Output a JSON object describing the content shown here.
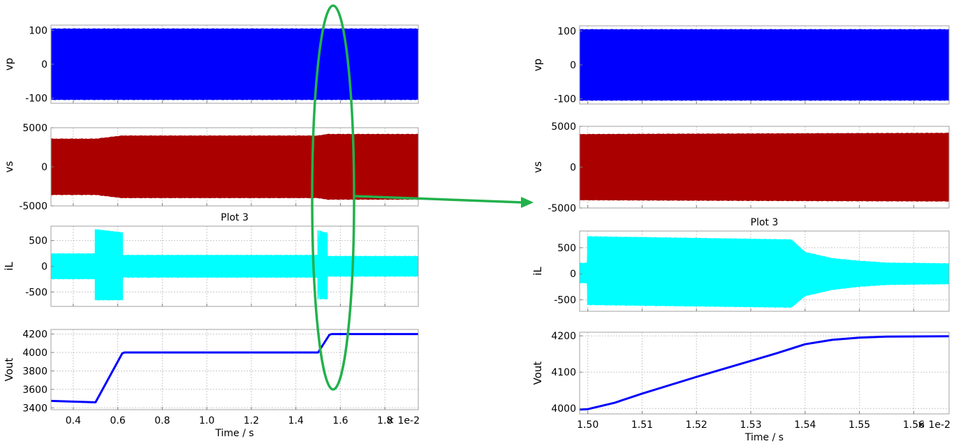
{
  "chart_data": [
    {
      "id": "left-vp",
      "type": "area",
      "ylabel": "vp",
      "xlim": [
        0.3,
        1.95
      ],
      "ylim": [
        -115,
        115
      ],
      "yticks": [
        100,
        0,
        -100
      ],
      "ytick_labels": [
        "100",
        "0",
        "-100"
      ],
      "xticks": [
        0.4,
        0.6,
        0.8,
        1.0,
        1.2,
        1.4,
        1.6,
        1.8
      ],
      "grid": true,
      "color": "#0000ff",
      "series": [
        {
          "x": [
            0.3,
            1.95
          ],
          "upper": [
            105,
            105
          ],
          "lower": [
            -105,
            -105
          ]
        }
      ]
    },
    {
      "id": "left-vs",
      "type": "area",
      "ylabel": "vs",
      "xlim": [
        0.3,
        1.95
      ],
      "ylim": [
        -5000,
        5000
      ],
      "yticks": [
        5000,
        0,
        -5000
      ],
      "ytick_labels": [
        "5000",
        "0",
        "-5000"
      ],
      "xticks": [
        0.4,
        0.6,
        0.8,
        1.0,
        1.2,
        1.4,
        1.6,
        1.8
      ],
      "grid": true,
      "color": "#aa0000",
      "series": [
        {
          "x": [
            0.3,
            0.5,
            0.62,
            1.5,
            1.54,
            1.95
          ],
          "upper": [
            3600,
            3600,
            4000,
            4000,
            4200,
            4200
          ],
          "lower": [
            -3600,
            -3600,
            -4000,
            -4000,
            -4200,
            -4200
          ]
        }
      ]
    },
    {
      "id": "left-il",
      "type": "area",
      "title": "Plot 3",
      "ylabel": "iL",
      "xlim": [
        0.3,
        1.95
      ],
      "ylim": [
        -780,
        780
      ],
      "yticks": [
        500,
        0,
        -500
      ],
      "ytick_labels": [
        "500",
        "0",
        "-500"
      ],
      "xticks": [
        0.4,
        0.6,
        0.8,
        1.0,
        1.2,
        1.4,
        1.6,
        1.8
      ],
      "grid": true,
      "color": "#00ffff",
      "series": [
        {
          "x": [
            0.3,
            0.5,
            0.5,
            0.62,
            0.62,
            1.5,
            1.5,
            1.54,
            1.54,
            1.95
          ],
          "upper": [
            250,
            250,
            720,
            660,
            220,
            220,
            700,
            650,
            200,
            200
          ],
          "lower": [
            -250,
            -250,
            -660,
            -660,
            -220,
            -220,
            -640,
            -640,
            -200,
            -200
          ]
        }
      ]
    },
    {
      "id": "left-vout",
      "type": "line",
      "ylabel": "Vout",
      "xlabel": "Time / s",
      "xlim": [
        0.3,
        1.95
      ],
      "ylim": [
        3380,
        4250
      ],
      "yticks": [
        4200,
        4000,
        3800,
        3600,
        3400
      ],
      "ytick_labels": [
        "4200",
        "4000",
        "3800",
        "3600",
        "3400"
      ],
      "xticks": [
        0.4,
        0.6,
        0.8,
        1.0,
        1.2,
        1.4,
        1.6,
        1.8
      ],
      "xtick_labels": [
        "0.4",
        "0.6",
        "0.8",
        "1.0",
        "1.2",
        "1.4",
        "1.6",
        "1.8"
      ],
      "x_multiplier": "× 1e-2",
      "grid": true,
      "color": "#0000ff",
      "series": [
        {
          "x": [
            0.3,
            0.5,
            0.62,
            0.63,
            1.5,
            1.55,
            1.56,
            1.95
          ],
          "y": [
            3475,
            3460,
            3990,
            4000,
            4000,
            4190,
            4200,
            4200
          ]
        }
      ]
    },
    {
      "id": "right-vp",
      "type": "area",
      "ylabel": "vp",
      "xlim": [
        1.4985,
        1.5665
      ],
      "ylim": [
        -115,
        115
      ],
      "yticks": [
        100,
        0,
        -100
      ],
      "ytick_labels": [
        "100",
        "0",
        "-100"
      ],
      "xticks": [
        1.5,
        1.51,
        1.52,
        1.53,
        1.54,
        1.55,
        1.56
      ],
      "grid": true,
      "color": "#0000ff",
      "series": [
        {
          "x": [
            1.4985,
            1.5665
          ],
          "upper": [
            105,
            105
          ],
          "lower": [
            -105,
            -105
          ]
        }
      ]
    },
    {
      "id": "right-vs",
      "type": "area",
      "ylabel": "vs",
      "xlim": [
        1.4985,
        1.5665
      ],
      "ylim": [
        -5000,
        5000
      ],
      "yticks": [
        5000,
        0,
        -5000
      ],
      "ytick_labels": [
        "5000",
        "0",
        "-5000"
      ],
      "xticks": [
        1.5,
        1.51,
        1.52,
        1.53,
        1.54,
        1.55,
        1.56
      ],
      "grid": true,
      "color": "#aa0000",
      "series": [
        {
          "x": [
            1.4985,
            1.54,
            1.5665
          ],
          "upper": [
            4050,
            4150,
            4200
          ],
          "lower": [
            -4050,
            -4150,
            -4200
          ]
        }
      ]
    },
    {
      "id": "right-il",
      "type": "area",
      "title": "Plot 3",
      "ylabel": "iL",
      "xlim": [
        1.4985,
        1.5665
      ],
      "ylim": [
        -720,
        820
      ],
      "yticks": [
        500,
        0,
        -500
      ],
      "ytick_labels": [
        "500",
        "0",
        "-500"
      ],
      "xticks": [
        1.5,
        1.51,
        1.52,
        1.53,
        1.54,
        1.55,
        1.56
      ],
      "grid": true,
      "color": "#00ffff",
      "series": [
        {
          "x": [
            1.4985,
            1.5,
            1.5,
            1.537,
            1.5375,
            1.54,
            1.545,
            1.55,
            1.555,
            1.5665
          ],
          "upper": [
            210,
            210,
            720,
            660,
            660,
            420,
            300,
            250,
            215,
            200
          ],
          "lower": [
            -180,
            -180,
            -600,
            -650,
            -650,
            -430,
            -310,
            -250,
            -215,
            -200
          ]
        }
      ]
    },
    {
      "id": "right-vout",
      "type": "line",
      "ylabel": "Vout",
      "xlabel": "Time / s",
      "xlim": [
        1.4985,
        1.5665
      ],
      "ylim": [
        3985,
        4210
      ],
      "yticks": [
        4200,
        4100,
        4000
      ],
      "ytick_labels": [
        "4200",
        "4100",
        "4000"
      ],
      "xticks": [
        1.5,
        1.51,
        1.52,
        1.53,
        1.54,
        1.55,
        1.56
      ],
      "xtick_labels": [
        "1.50",
        "1.51",
        "1.52",
        "1.53",
        "1.54",
        "1.55",
        "1.56"
      ],
      "x_multiplier": "× 1e-2",
      "grid": true,
      "color": "#0000ff",
      "series": [
        {
          "x": [
            1.4985,
            1.5,
            1.505,
            1.51,
            1.52,
            1.53,
            1.535,
            1.54,
            1.545,
            1.55,
            1.555,
            1.5665
          ],
          "y": [
            3997,
            3998,
            4016,
            4041,
            4087,
            4131,
            4153,
            4177,
            4189,
            4195,
            4198,
            4199
          ]
        }
      ]
    }
  ],
  "annotation": {
    "ellipse_color": "#22b14c",
    "arrow_color": "#22b14c"
  }
}
